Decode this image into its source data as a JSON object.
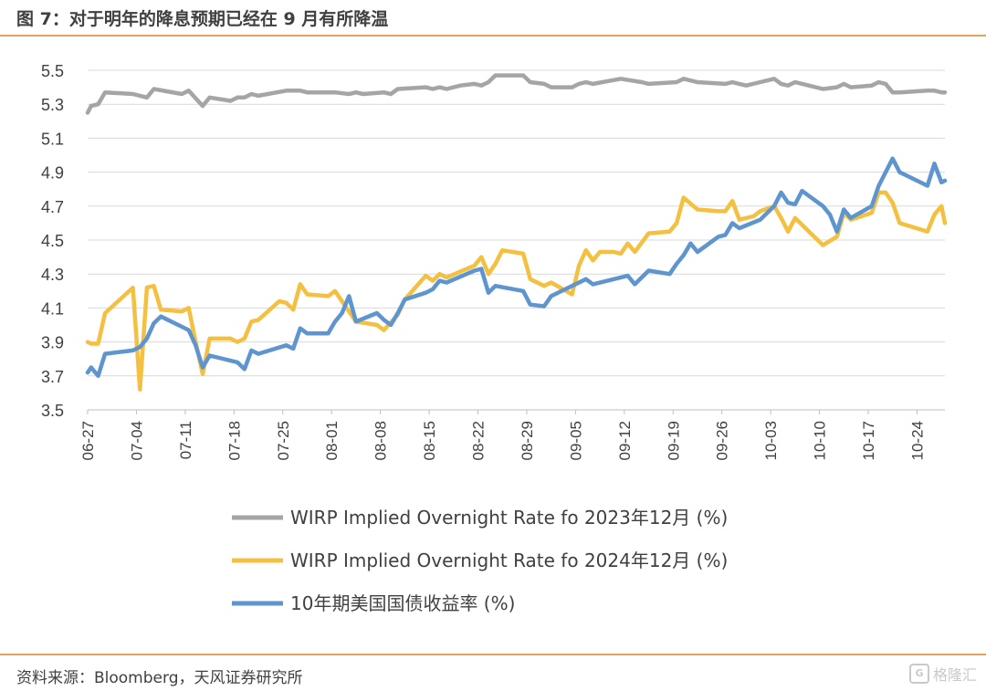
{
  "header": {
    "title": "图 7：对于明年的降息预期已经在 9 月有所降温"
  },
  "footer": {
    "source": "资料来源：Bloomberg，天风证券研究所",
    "watermark_icon": "G",
    "watermark_text": "格隆汇"
  },
  "colors": {
    "gray": "#a5a5a5",
    "yellow": "#f4c042",
    "blue": "#5e95ce",
    "rule": "#e8a15c"
  },
  "chart_data": {
    "type": "line",
    "title": "",
    "xlabel": "",
    "ylabel": "",
    "ylim": [
      3.5,
      5.5
    ],
    "yticks": [
      "5.5",
      "5.3",
      "5.1",
      "4.9",
      "4.7",
      "4.5",
      "4.3",
      "4.1",
      "3.9",
      "3.7",
      "3.5"
    ],
    "x_tick_labels": [
      "06-27",
      "07-04",
      "07-11",
      "07-18",
      "07-25",
      "08-01",
      "08-08",
      "08-15",
      "08-22",
      "08-29",
      "09-05",
      "09-12",
      "09-19",
      "09-26",
      "10-03",
      "10-10",
      "10-17",
      "10-24"
    ],
    "x_range_days": [
      0,
      123
    ],
    "grid": "horizontal",
    "legend_position": "bottom",
    "series": [
      {
        "name": "WIRP Implied Overnight Rate fo 2023年12月 (%)",
        "color": "gray",
        "points": [
          [
            0,
            5.25
          ],
          [
            0.5,
            5.29
          ],
          [
            1.5,
            5.3
          ],
          [
            2.5,
            5.37
          ],
          [
            6.5,
            5.36
          ],
          [
            8.5,
            5.34
          ],
          [
            9.5,
            5.39
          ],
          [
            13.5,
            5.36
          ],
          [
            14.5,
            5.38
          ],
          [
            16.5,
            5.29
          ],
          [
            17.5,
            5.34
          ],
          [
            20.5,
            5.32
          ],
          [
            21.5,
            5.34
          ],
          [
            22.5,
            5.34
          ],
          [
            23.5,
            5.36
          ],
          [
            24.5,
            5.35
          ],
          [
            28.5,
            5.38
          ],
          [
            30.5,
            5.38
          ],
          [
            31.5,
            5.37
          ],
          [
            35.5,
            5.37
          ],
          [
            37.5,
            5.36
          ],
          [
            38.5,
            5.37
          ],
          [
            39.5,
            5.36
          ],
          [
            42.5,
            5.37
          ],
          [
            43.5,
            5.36
          ],
          [
            44.5,
            5.39
          ],
          [
            48.5,
            5.4
          ],
          [
            49.5,
            5.39
          ],
          [
            50.5,
            5.4
          ],
          [
            51.5,
            5.39
          ],
          [
            53.5,
            5.41
          ],
          [
            55.5,
            5.42
          ],
          [
            56.5,
            5.41
          ],
          [
            57.5,
            5.43
          ],
          [
            58.5,
            5.47
          ],
          [
            62.5,
            5.47
          ],
          [
            63.5,
            5.43
          ],
          [
            65.5,
            5.42
          ],
          [
            66.5,
            5.4
          ],
          [
            69.5,
            5.4
          ],
          [
            70.5,
            5.42
          ],
          [
            71.5,
            5.43
          ],
          [
            72.5,
            5.42
          ],
          [
            76.5,
            5.45
          ],
          [
            79.5,
            5.43
          ],
          [
            80.5,
            5.42
          ],
          [
            84.5,
            5.43
          ],
          [
            85.5,
            5.45
          ],
          [
            86.5,
            5.44
          ],
          [
            87.5,
            5.43
          ],
          [
            91.5,
            5.42
          ],
          [
            92.5,
            5.43
          ],
          [
            93.5,
            5.42
          ],
          [
            94.5,
            5.41
          ],
          [
            96.5,
            5.43
          ],
          [
            98.5,
            5.45
          ],
          [
            99.5,
            5.42
          ],
          [
            100.5,
            5.41
          ],
          [
            101.5,
            5.43
          ],
          [
            105.5,
            5.39
          ],
          [
            107.5,
            5.4
          ],
          [
            108.5,
            5.42
          ],
          [
            109.5,
            5.4
          ],
          [
            112.5,
            5.41
          ],
          [
            113.5,
            5.43
          ],
          [
            114.5,
            5.42
          ],
          [
            115.5,
            5.37
          ],
          [
            116.5,
            5.37
          ],
          [
            120.5,
            5.38
          ],
          [
            121.5,
            5.38
          ],
          [
            122.5,
            5.37
          ],
          [
            123,
            5.37
          ]
        ]
      },
      {
        "name": "WIRP Implied Overnight Rate fo 2024年12月  (%)",
        "color": "yellow",
        "points": [
          [
            0,
            3.9
          ],
          [
            0.5,
            3.89
          ],
          [
            1.5,
            3.89
          ],
          [
            2.5,
            4.07
          ],
          [
            6.5,
            4.22
          ],
          [
            7.5,
            3.62
          ],
          [
            8.5,
            4.22
          ],
          [
            9.5,
            4.23
          ],
          [
            10.5,
            4.09
          ],
          [
            13.5,
            4.08
          ],
          [
            14.5,
            4.1
          ],
          [
            15.5,
            3.9
          ],
          [
            16.5,
            3.71
          ],
          [
            17.5,
            3.92
          ],
          [
            20.5,
            3.92
          ],
          [
            21.5,
            3.9
          ],
          [
            22.5,
            3.92
          ],
          [
            23.5,
            4.02
          ],
          [
            24.5,
            4.03
          ],
          [
            27.5,
            4.14
          ],
          [
            28.5,
            4.13
          ],
          [
            29.5,
            4.09
          ],
          [
            30.5,
            4.24
          ],
          [
            31.5,
            4.18
          ],
          [
            34.5,
            4.17
          ],
          [
            35.5,
            4.2
          ],
          [
            36.5,
            4.14
          ],
          [
            38.5,
            4.02
          ],
          [
            41.5,
            4.0
          ],
          [
            42.5,
            3.97
          ],
          [
            44.5,
            4.06
          ],
          [
            45.5,
            4.15
          ],
          [
            48.5,
            4.29
          ],
          [
            49.5,
            4.26
          ],
          [
            50.5,
            4.3
          ],
          [
            51.5,
            4.28
          ],
          [
            55.5,
            4.35
          ],
          [
            56.5,
            4.4
          ],
          [
            57.5,
            4.3
          ],
          [
            58.5,
            4.36
          ],
          [
            59.5,
            4.44
          ],
          [
            62.5,
            4.42
          ],
          [
            63.5,
            4.27
          ],
          [
            65.5,
            4.23
          ],
          [
            66.5,
            4.25
          ],
          [
            69.5,
            4.18
          ],
          [
            70.5,
            4.35
          ],
          [
            71.5,
            4.44
          ],
          [
            72.5,
            4.38
          ],
          [
            73.5,
            4.43
          ],
          [
            75.5,
            4.43
          ],
          [
            76.5,
            4.42
          ],
          [
            77.5,
            4.48
          ],
          [
            78.5,
            4.43
          ],
          [
            80.5,
            4.54
          ],
          [
            83.5,
            4.55
          ],
          [
            84.5,
            4.6
          ],
          [
            85.5,
            4.75
          ],
          [
            87.5,
            4.68
          ],
          [
            90.5,
            4.67
          ],
          [
            91.5,
            4.67
          ],
          [
            92.5,
            4.73
          ],
          [
            93.5,
            4.62
          ],
          [
            95.5,
            4.64
          ],
          [
            96.5,
            4.67
          ],
          [
            98.5,
            4.7
          ],
          [
            99.5,
            4.63
          ],
          [
            100.5,
            4.55
          ],
          [
            101.5,
            4.63
          ],
          [
            105.5,
            4.47
          ],
          [
            107.5,
            4.52
          ],
          [
            108.5,
            4.66
          ],
          [
            109.5,
            4.62
          ],
          [
            112.5,
            4.66
          ],
          [
            113.5,
            4.78
          ],
          [
            114.5,
            4.78
          ],
          [
            115.5,
            4.72
          ],
          [
            116.5,
            4.6
          ],
          [
            120.5,
            4.55
          ],
          [
            121.5,
            4.65
          ],
          [
            122.5,
            4.7
          ],
          [
            123,
            4.6
          ]
        ]
      },
      {
        "name": "10年期美国国债收益率  (%)",
        "color": "blue",
        "points": [
          [
            0,
            3.72
          ],
          [
            0.5,
            3.75
          ],
          [
            1.5,
            3.7
          ],
          [
            2.5,
            3.83
          ],
          [
            6.5,
            3.85
          ],
          [
            7.5,
            3.87
          ],
          [
            8.5,
            3.92
          ],
          [
            9.5,
            4.01
          ],
          [
            10.5,
            4.05
          ],
          [
            14.5,
            3.97
          ],
          [
            15.5,
            3.88
          ],
          [
            16.5,
            3.75
          ],
          [
            17.5,
            3.82
          ],
          [
            21.5,
            3.78
          ],
          [
            22.5,
            3.74
          ],
          [
            23.5,
            3.85
          ],
          [
            24.5,
            3.83
          ],
          [
            28.5,
            3.88
          ],
          [
            29.5,
            3.86
          ],
          [
            30.5,
            3.98
          ],
          [
            31.5,
            3.95
          ],
          [
            34.5,
            3.95
          ],
          [
            35.5,
            4.02
          ],
          [
            36.5,
            4.07
          ],
          [
            37.5,
            4.17
          ],
          [
            38.5,
            4.02
          ],
          [
            41.5,
            4.07
          ],
          [
            42.5,
            4.03
          ],
          [
            43.5,
            4.0
          ],
          [
            44.5,
            4.07
          ],
          [
            45.5,
            4.15
          ],
          [
            48.5,
            4.19
          ],
          [
            49.5,
            4.21
          ],
          [
            50.5,
            4.26
          ],
          [
            51.5,
            4.25
          ],
          [
            55.5,
            4.32
          ],
          [
            56.5,
            4.33
          ],
          [
            57.5,
            4.19
          ],
          [
            58.5,
            4.23
          ],
          [
            62.5,
            4.2
          ],
          [
            63.5,
            4.12
          ],
          [
            65.5,
            4.11
          ],
          [
            66.5,
            4.17
          ],
          [
            70.5,
            4.25
          ],
          [
            71.5,
            4.27
          ],
          [
            72.5,
            4.24
          ],
          [
            76.5,
            4.28
          ],
          [
            77.5,
            4.29
          ],
          [
            78.5,
            4.24
          ],
          [
            80.5,
            4.32
          ],
          [
            83.5,
            4.3
          ],
          [
            84.5,
            4.36
          ],
          [
            85.5,
            4.41
          ],
          [
            86.5,
            4.48
          ],
          [
            87.5,
            4.43
          ],
          [
            90.5,
            4.52
          ],
          [
            91.5,
            4.53
          ],
          [
            92.5,
            4.6
          ],
          [
            93.5,
            4.57
          ],
          [
            96.5,
            4.62
          ],
          [
            98.5,
            4.7
          ],
          [
            99.5,
            4.78
          ],
          [
            100.5,
            4.72
          ],
          [
            101.5,
            4.71
          ],
          [
            102.5,
            4.79
          ],
          [
            105.5,
            4.7
          ],
          [
            106.5,
            4.65
          ],
          [
            107.5,
            4.55
          ],
          [
            108.5,
            4.68
          ],
          [
            109.5,
            4.63
          ],
          [
            112.5,
            4.7
          ],
          [
            113.5,
            4.82
          ],
          [
            114.5,
            4.9
          ],
          [
            115.5,
            4.98
          ],
          [
            116.5,
            4.9
          ],
          [
            120.5,
            4.82
          ],
          [
            121.5,
            4.95
          ],
          [
            122.5,
            4.84
          ],
          [
            123,
            4.85
          ]
        ]
      }
    ]
  }
}
